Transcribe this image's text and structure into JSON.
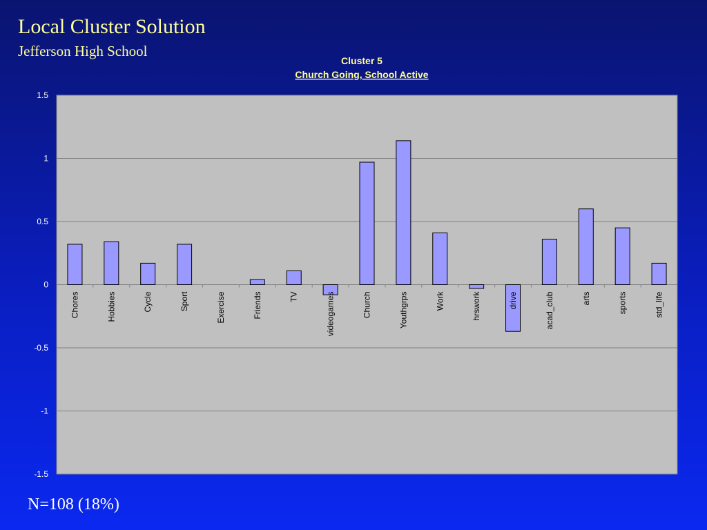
{
  "slide": {
    "title": "Local Cluster Solution",
    "subtitle": "Jefferson High School",
    "footer": "N=108 (18%)"
  },
  "chart_data": {
    "type": "bar",
    "title": "Cluster 5",
    "subtitle": "Church Going, School Active",
    "xlabel": "",
    "ylabel": "",
    "ylim": [
      -1.5,
      1.5
    ],
    "yticks": [
      1.5,
      1,
      0.5,
      0,
      -0.5,
      -1,
      -1.5
    ],
    "grid": true,
    "legend": "none",
    "categories": [
      "Chores",
      "Hobbies",
      "Cycle",
      "Sport",
      "Exercise",
      "Friends",
      "TV",
      "videogames",
      "Church",
      "Youthgrps",
      "Work",
      "hrswork",
      "drive",
      "acad_club",
      "arts",
      "sports",
      "std_life"
    ],
    "values": [
      0.32,
      0.34,
      0.17,
      0.32,
      0.0,
      0.04,
      0.11,
      -0.08,
      0.97,
      1.14,
      0.41,
      -0.03,
      -0.37,
      0.36,
      0.6,
      0.45,
      0.17
    ],
    "colors": {
      "bar_fill": "#9999ff",
      "bar_stroke": "#000000",
      "plot_bg": "#c0c0c0",
      "title_color": "#ffff99",
      "text_color": "#ffffff"
    }
  }
}
